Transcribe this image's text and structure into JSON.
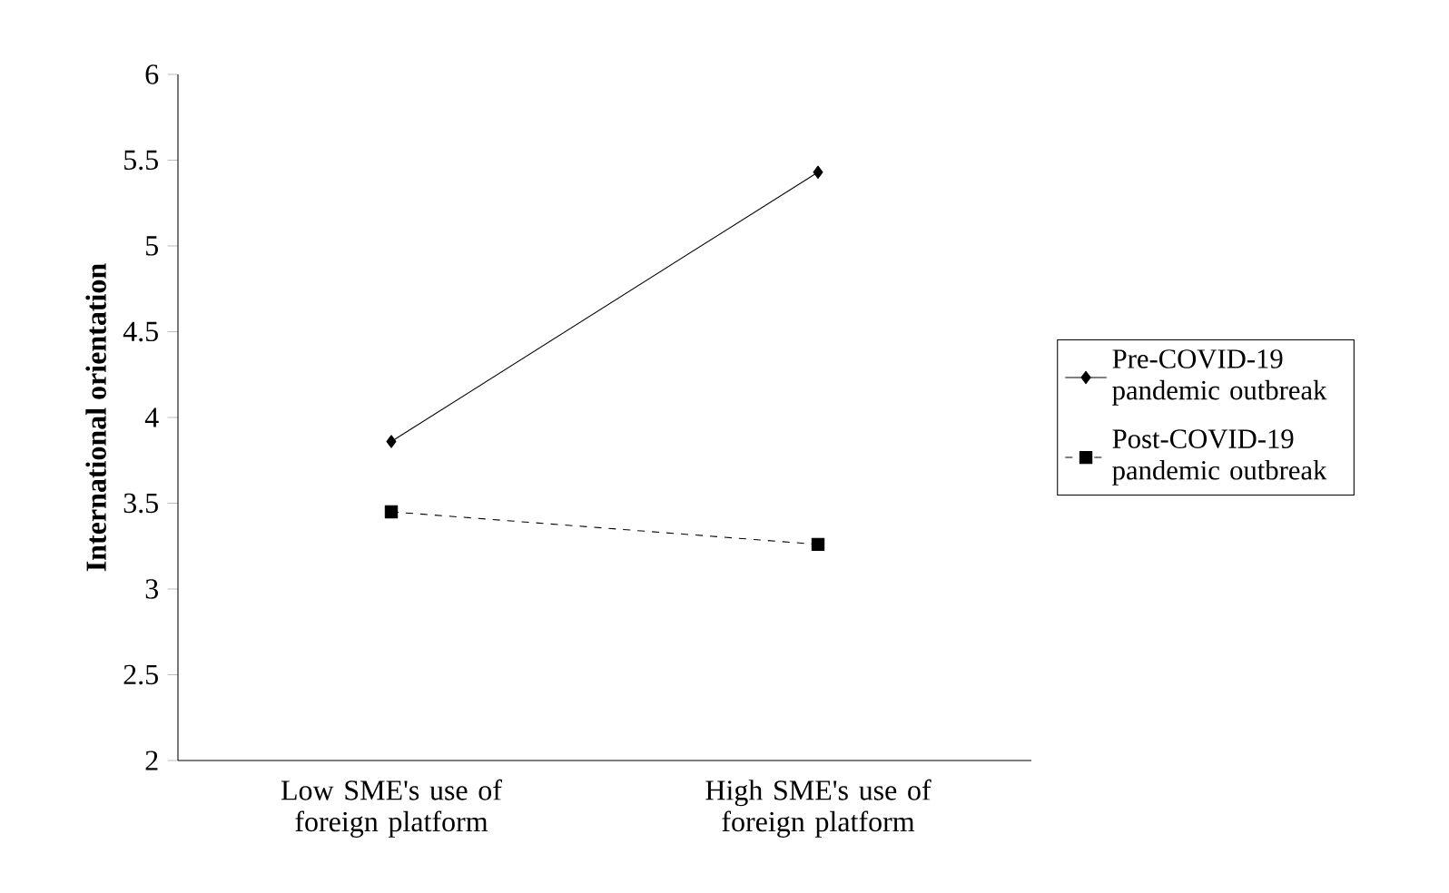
{
  "chart_data": {
    "type": "line",
    "ylabel": "International orientation",
    "categories": [
      "Low SME's use of foreign platform",
      "High SME's use of foreign platform"
    ],
    "series": [
      {
        "name": "Pre-COVID-19 pandemic outbreak",
        "color": "#000000",
        "values": [
          3.86,
          5.43
        ],
        "marker": "diamond",
        "line_style": "solid"
      },
      {
        "name": "Post-COVID-19 pandemic outbreak",
        "color": "#000000",
        "values": [
          3.45,
          3.26
        ],
        "marker": "square",
        "line_style": "dashed"
      }
    ],
    "ylim": [
      2,
      6
    ],
    "yticks": [
      2,
      2.5,
      3,
      3.5,
      4,
      4.5,
      5,
      5.5,
      6
    ],
    "grid": false,
    "legend": "right"
  }
}
